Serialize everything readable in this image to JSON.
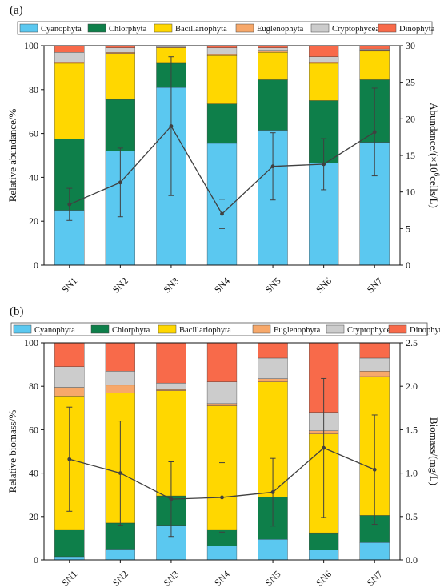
{
  "colors": {
    "Cyanophyta": "#5BC8F0",
    "Chlorphyta": "#0E7F4A",
    "Bacillariophyta": "#FFD700",
    "Euglenophyta": "#F7A86A",
    "Cryptophyceae": "#CCCCCC",
    "Dinophyta": "#F86A4A",
    "line": "#404040"
  },
  "chart_data": [
    {
      "type": "bar",
      "panel_label": "(a)",
      "stacked": true,
      "categories": [
        "SN1",
        "SN2",
        "SN3",
        "SN4",
        "SN5",
        "SN6",
        "SN7"
      ],
      "series": [
        {
          "name": "Cyanophyta",
          "values": [
            25,
            52,
            81,
            55.5,
            61.5,
            46.5,
            56
          ]
        },
        {
          "name": "Chlorphyta",
          "values": [
            32.5,
            23.5,
            11,
            18,
            23,
            28.5,
            28.5
          ]
        },
        {
          "name": "Bacillariophyta",
          "values": [
            34.5,
            21,
            7,
            22,
            12.5,
            17,
            13
          ]
        },
        {
          "name": "Euglenophyta",
          "values": [
            0.5,
            0.5,
            0.3,
            0.5,
            0.5,
            0.5,
            0.3
          ]
        },
        {
          "name": "Cryptophyceae",
          "values": [
            4.5,
            2,
            0.5,
            3,
            1.5,
            2.5,
            0.7
          ]
        },
        {
          "name": "Dinophyta",
          "values": [
            3,
            1,
            0.2,
            1,
            1,
            5,
            1.5
          ]
        }
      ],
      "line": {
        "values": [
          8.3,
          11.3,
          19,
          7,
          13.5,
          13.8,
          18.2
        ],
        "errors": [
          2.2,
          4.7,
          9.5,
          2,
          4.6,
          3.5,
          6
        ]
      },
      "ylabel": "Relative abundance/%",
      "y2label_parts": [
        "Abundance/(×10",
        "6",
        "cells/L)"
      ],
      "ylim": [
        0,
        100
      ],
      "y2lim": [
        0,
        30
      ],
      "yticks": [
        "0",
        "20",
        "40",
        "60",
        "80",
        "100"
      ],
      "y2ticks": [
        "0",
        "5",
        "10",
        "15",
        "20",
        "25",
        "30"
      ]
    },
    {
      "type": "bar",
      "panel_label": "(b)",
      "stacked": true,
      "categories": [
        "SN1",
        "SN2",
        "SN3",
        "SN4",
        "SN5",
        "SN6",
        "SN7"
      ],
      "series": [
        {
          "name": "Cyanophyta",
          "values": [
            1.5,
            5,
            16,
            6.5,
            9.5,
            4.5,
            8
          ]
        },
        {
          "name": "Chlorphyta",
          "values": [
            12.5,
            12,
            13.5,
            7.5,
            19.5,
            8,
            12.5
          ]
        },
        {
          "name": "Bacillariophyta",
          "values": [
            61.5,
            60,
            48.5,
            57,
            53,
            45.5,
            64
          ]
        },
        {
          "name": "Euglenophyta",
          "values": [
            4,
            3.5,
            0.5,
            1,
            1.5,
            1.5,
            2.5
          ]
        },
        {
          "name": "Cryptophyceae",
          "values": [
            9.5,
            6.5,
            3,
            10,
            9.5,
            8.5,
            6
          ]
        },
        {
          "name": "Dinophyta",
          "values": [
            11,
            13,
            18.5,
            18,
            7,
            32,
            7
          ]
        }
      ],
      "line": {
        "values": [
          1.16,
          1.0,
          0.7,
          0.72,
          0.78,
          1.29,
          1.04
        ],
        "errors": [
          0.6,
          0.6,
          0.43,
          0.4,
          0.39,
          0.8,
          0.63
        ]
      },
      "ylabel": "Relative biomass/%",
      "y2label_parts": [
        "Biomass/(mg/L)"
      ],
      "ylim": [
        0,
        100
      ],
      "y2lim": [
        0,
        2.5
      ],
      "yticks": [
        "0",
        "20",
        "40",
        "60",
        "80",
        "100"
      ],
      "y2ticks": [
        "0.0",
        "0.5",
        "1.0",
        "1.5",
        "2.0",
        "2.5"
      ]
    }
  ]
}
